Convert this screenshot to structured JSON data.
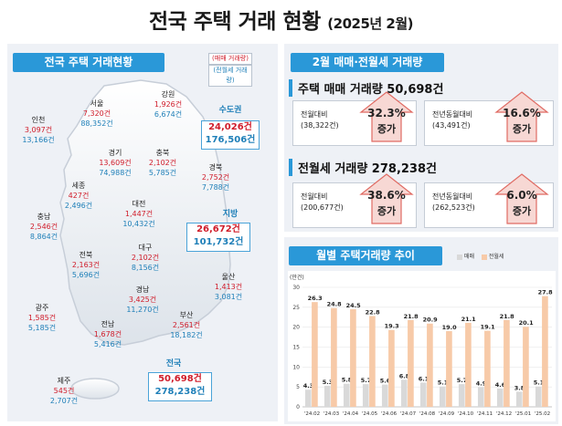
{
  "title": {
    "main": "전국 주택 거래 현황",
    "sub": "(2025년 2월)"
  },
  "left": {
    "header": "전국 주택 거래현황",
    "legend": {
      "sale": "(매매 거래량)",
      "jeonse": "(전월세 거래량)"
    },
    "regions": {
      "seoul": {
        "name": "서울",
        "sale": "7,320건",
        "jeonse": "88,352건"
      },
      "incheon": {
        "name": "인천",
        "sale": "3,097건",
        "jeonse": "13,166건"
      },
      "gangwon": {
        "name": "강원",
        "sale": "1,926건",
        "jeonse": "6,674건"
      },
      "gyeonggi": {
        "name": "경기",
        "sale": "13,609건",
        "jeonse": "74,988건"
      },
      "chungbuk": {
        "name": "충북",
        "sale": "2,102건",
        "jeonse": "5,785건"
      },
      "sejong": {
        "name": "세종",
        "sale": "427건",
        "jeonse": "2,496건"
      },
      "gyeongbuk": {
        "name": "경북",
        "sale": "2,752건",
        "jeonse": "7,788건"
      },
      "chungnam": {
        "name": "충남",
        "sale": "2,546건",
        "jeonse": "8,864건"
      },
      "daejeon": {
        "name": "대전",
        "sale": "1,447건",
        "jeonse": "10,432건"
      },
      "daegu": {
        "name": "대구",
        "sale": "2,102건",
        "jeonse": "8,156건"
      },
      "jeonbuk": {
        "name": "전북",
        "sale": "2,163건",
        "jeonse": "5,696건"
      },
      "ulsan": {
        "name": "울산",
        "sale": "1,413건",
        "jeonse": "3,081건"
      },
      "gyeongnam": {
        "name": "경남",
        "sale": "3,425건",
        "jeonse": "11,270건"
      },
      "gwangju": {
        "name": "광주",
        "sale": "1,585건",
        "jeonse": "5,185건"
      },
      "busan": {
        "name": "부산",
        "sale": "2,561건",
        "jeonse": "18,182건"
      },
      "jeonnam": {
        "name": "전남",
        "sale": "1,678건",
        "jeonse": "5,416건"
      },
      "jeju": {
        "name": "제주",
        "sale": "545건",
        "jeonse": "2,707건"
      }
    },
    "capital": {
      "name": "수도권",
      "sale": "24,026건",
      "jeonse": "176,506건"
    },
    "local": {
      "name": "지방",
      "sale": "26,672건",
      "jeonse": "101,732건"
    },
    "nation": {
      "name": "전국",
      "sale": "50,698건",
      "jeonse": "278,238건"
    }
  },
  "right": {
    "header": "2월 매매·전월세 거래량",
    "sale": {
      "title": "주택 매매 거래량 50,698건",
      "mom": {
        "label1": "전월대비",
        "label2": "(38,322건)",
        "pct": "32.3%",
        "dir": "증가"
      },
      "yoy": {
        "label1": "전년동월대비",
        "label2": "(43,491건)",
        "pct": "16.6%",
        "dir": "증가"
      }
    },
    "jeonse": {
      "title": "전월세 거래량 278,238건",
      "mom": {
        "label1": "전월대비",
        "label2": "(200,677건)",
        "pct": "38.6%",
        "dir": "증가"
      },
      "yoy": {
        "label1": "전년동월대비",
        "label2": "(262,523건)",
        "pct": "6.0%",
        "dir": "증가"
      }
    },
    "chart_header": "월별 주택거래량 추이",
    "colors": {
      "sale": "#d9d9d9",
      "jeonse": "#f7caa8",
      "accent": "#2a98d8"
    }
  },
  "chart_data": {
    "type": "bar",
    "title": "월별 주택거래량 추이",
    "ylabel": "(만건)",
    "ylim": [
      0,
      30
    ],
    "yticks": [
      0,
      5,
      10,
      15,
      20,
      25,
      30
    ],
    "categories": [
      "'24.02",
      "'24.03",
      "'24.04",
      "'24.05",
      "'24.06",
      "'24.07",
      "'24.08",
      "'24.09",
      "'24.10",
      "'24.11",
      "'24.12",
      "'25.01",
      "'25.02"
    ],
    "series": [
      {
        "name": "매매",
        "values": [
          4.3,
          5.3,
          5.8,
          5.7,
          5.6,
          6.8,
          6.1,
          5.1,
          5.7,
          4.9,
          4.6,
          3.8,
          5.1
        ]
      },
      {
        "name": "전월세",
        "values": [
          26.3,
          24.8,
          24.5,
          22.8,
          19.3,
          21.8,
          20.9,
          19.0,
          21.1,
          19.1,
          21.8,
          20.1,
          27.8
        ]
      }
    ],
    "legend": "top-right"
  }
}
